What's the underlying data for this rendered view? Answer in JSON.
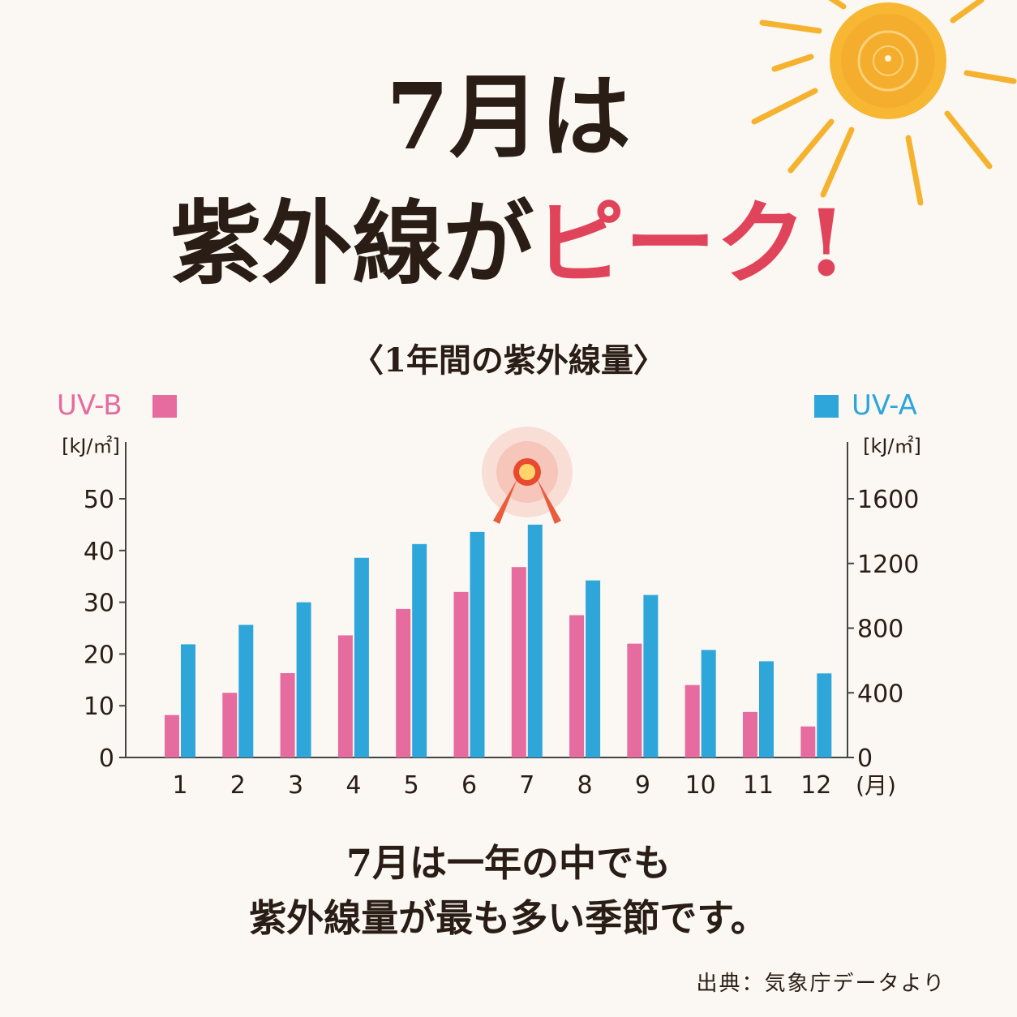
{
  "headline": {
    "line1": "7月は",
    "line2_main": "紫外線が",
    "line2_accent": "ピーク!"
  },
  "subtitle": "〈1年間の紫外線量〉",
  "caption": {
    "line1": "7月は一年の中でも",
    "line2": "紫外線量が最も多い季節です。"
  },
  "source": "出典：気象庁データより",
  "colors": {
    "uvb": "#e66b9e",
    "uva": "#2ea6da",
    "accent": "#e0445a",
    "sun": "#f5ad2a"
  },
  "chart_data": {
    "type": "bar",
    "categories": [
      "1",
      "2",
      "3",
      "4",
      "5",
      "6",
      "7",
      "8",
      "9",
      "10",
      "11",
      "12"
    ],
    "x_unit": "(月)",
    "series": [
      {
        "name": "UV-B",
        "axis": "left",
        "unit": "[kJ/㎡]",
        "values": [
          8.2,
          12.5,
          16.3,
          23.6,
          28.7,
          32.0,
          36.8,
          27.5,
          22.0,
          14.0,
          8.8,
          6.0
        ]
      },
      {
        "name": "UV-A",
        "axis": "right",
        "unit": "[kJ/㎡]",
        "values": [
          700,
          820,
          960,
          1235,
          1320,
          1395,
          1440,
          1095,
          1005,
          665,
          595,
          520
        ]
      }
    ],
    "y_left": {
      "ticks": [
        "0",
        "10",
        "20",
        "30",
        "40",
        "50"
      ],
      "ylim": [
        0,
        50
      ]
    },
    "y_right": {
      "ticks": [
        "0",
        "400",
        "800",
        "1200",
        "1600"
      ],
      "ylim": [
        0,
        1600
      ]
    },
    "highlight_category": "7",
    "legend": {
      "uvb": "top-left",
      "uva": "top-right"
    }
  }
}
